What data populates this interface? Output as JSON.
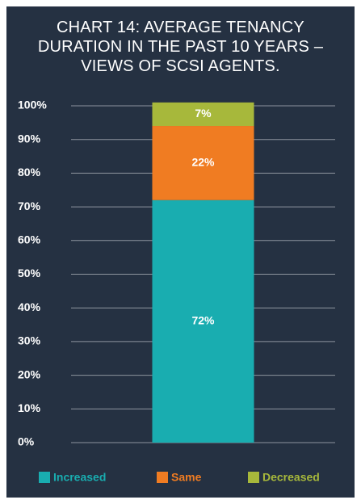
{
  "chart_data": {
    "type": "stacked_bar",
    "title": "CHART 14: AVERAGE TENANCY DURATION IN THE PAST 10 YEARS – VIEWS OF SCSI AGENTS.",
    "categories": [
      null
    ],
    "series": [
      {
        "name": "Increased",
        "color": "#19adb0",
        "values": [
          72
        ],
        "value_labels": [
          "72%"
        ]
      },
      {
        "name": "Same",
        "color": "#f07c22",
        "values": [
          22
        ],
        "value_labels": [
          "22%"
        ]
      },
      {
        "name": "Decreased",
        "color": "#a7b83b",
        "values": [
          7
        ],
        "value_labels": [
          "7%"
        ]
      }
    ],
    "ylim": [
      0,
      100
    ],
    "yticks": [
      {
        "value": 0,
        "label": "0%"
      },
      {
        "value": 10,
        "label": "10%"
      },
      {
        "value": 20,
        "label": "20%"
      },
      {
        "value": 30,
        "label": "30%"
      },
      {
        "value": 40,
        "label": "40%"
      },
      {
        "value": 50,
        "label": "50%"
      },
      {
        "value": 60,
        "label": "60%"
      },
      {
        "value": 70,
        "label": "70%"
      },
      {
        "value": 80,
        "label": "80%"
      },
      {
        "value": 90,
        "label": "90%"
      },
      {
        "value": 100,
        "label": "100%"
      }
    ],
    "grid": true,
    "legend": "bottom"
  }
}
